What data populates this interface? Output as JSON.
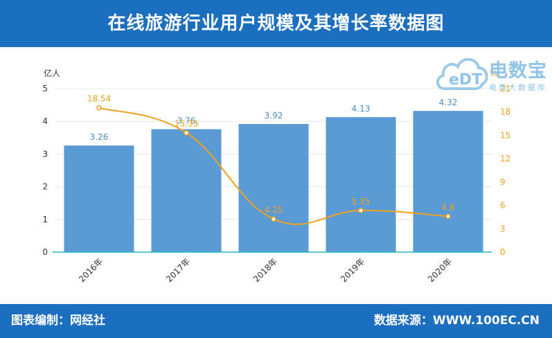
{
  "header": {
    "title": "在线旅游行业用户规模及其增长率数据图"
  },
  "footer": {
    "left": "图表编制：网经社",
    "right": "数据来源：WWW.100EC.CN"
  },
  "watermark": {
    "brand": "电数宝",
    "logo_text": "eDT",
    "sub": "电商大数据库"
  },
  "colors": {
    "header": "#1c6fbf",
    "bar": "#5b9bd5",
    "line": "#f2a01e",
    "axis": "#1fb5c4"
  },
  "chart_data": {
    "type": "bar",
    "categories": [
      "2016年",
      "2017年",
      "2018年",
      "2019年",
      "2020年"
    ],
    "series": [
      {
        "values": [
          3.26,
          3.76,
          3.92,
          4.13,
          4.32
        ],
        "axis": "left",
        "render": "bar"
      },
      {
        "values": [
          18.54,
          15.33,
          4.25,
          5.35,
          4.6
        ],
        "axis": "right",
        "render": "line"
      }
    ],
    "left_axis": {
      "unit": "亿人",
      "ylim": [
        0,
        5
      ],
      "ticks": [
        0,
        1,
        2,
        3,
        4,
        5
      ]
    },
    "right_axis": {
      "unit": "%",
      "ylim": [
        0,
        21
      ],
      "ticks": [
        0,
        3,
        6,
        9,
        12,
        15,
        18,
        21
      ]
    },
    "grid": true,
    "legend": "none"
  }
}
